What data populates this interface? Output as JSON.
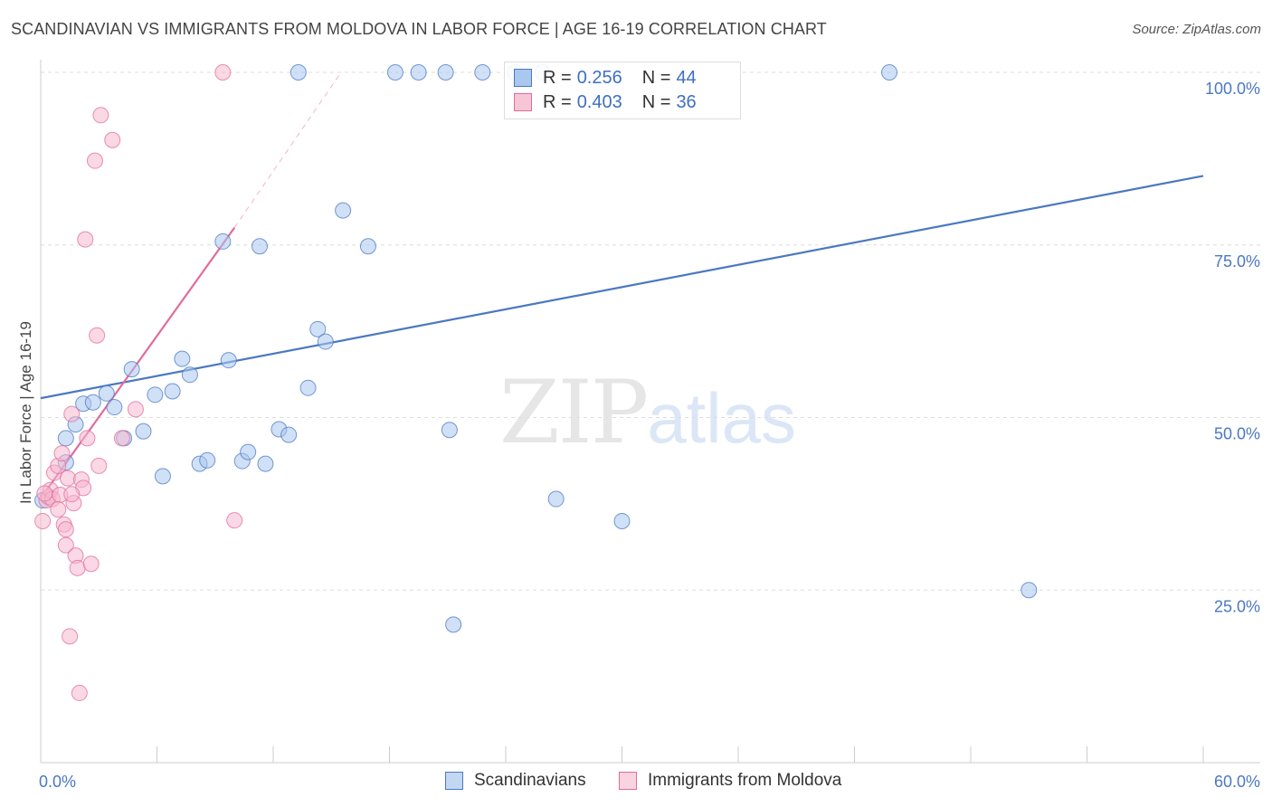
{
  "title": "SCANDINAVIAN VS IMMIGRANTS FROM MOLDOVA IN LABOR FORCE | AGE 16-19 CORRELATION CHART",
  "source": "Source: ZipAtlas.com",
  "watermark": {
    "zip": "ZIP",
    "atlas": "atlas"
  },
  "colors": {
    "blue": "#4a78c2",
    "blue_fill": "#aac7ef",
    "pink": "#e16c99",
    "pink_fill": "#f6b8cd",
    "grid": "#dddddd"
  },
  "legend_top": {
    "rows": [
      {
        "r_label": "R =",
        "r_value": "0.256",
        "n_label": "N =",
        "n_value": "44"
      },
      {
        "r_label": "R =",
        "r_value": "0.403",
        "n_label": "N =",
        "n_value": "36"
      }
    ]
  },
  "legend_bottom": [
    "Scandinavians",
    "Immigrants from Moldova"
  ],
  "chart_data": {
    "type": "scatter",
    "ylabel": "In Labor Force | Age 16-19",
    "xlim": [
      0,
      60
    ],
    "ylim": [
      0,
      100
    ],
    "x_tick_labels": [
      "0.0%",
      "60.0%"
    ],
    "y_ticks": [
      25,
      50,
      75,
      100
    ],
    "y_tick_labels": [
      "25.0%",
      "50.0%",
      "75.0%",
      "100.0%"
    ],
    "grid": true,
    "legend_position": "top",
    "series": [
      {
        "name": "Scandinavians",
        "color": "#4a78c2",
        "points": [
          [
            0.1,
            38
          ],
          [
            1.3,
            43.5
          ],
          [
            1.3,
            47
          ],
          [
            1.8,
            49
          ],
          [
            2.2,
            52
          ],
          [
            2.7,
            52.2
          ],
          [
            3.4,
            53.5
          ],
          [
            3.8,
            51.5
          ],
          [
            4.3,
            47
          ],
          [
            4.7,
            57
          ],
          [
            5.3,
            48
          ],
          [
            5.9,
            53.3
          ],
          [
            6.3,
            41.5
          ],
          [
            6.8,
            53.8
          ],
          [
            7.3,
            58.5
          ],
          [
            7.7,
            56.2
          ],
          [
            8.2,
            43.3
          ],
          [
            8.6,
            43.8
          ],
          [
            9.4,
            75.5
          ],
          [
            9.7,
            58.3
          ],
          [
            10.4,
            43.7
          ],
          [
            10.7,
            45
          ],
          [
            11.3,
            74.8
          ],
          [
            11.6,
            43.3
          ],
          [
            12.3,
            48.3
          ],
          [
            12.8,
            47.5
          ],
          [
            13.3,
            100
          ],
          [
            13.8,
            54.3
          ],
          [
            14.3,
            62.8
          ],
          [
            14.7,
            61
          ],
          [
            15.6,
            80
          ],
          [
            16.9,
            74.8
          ],
          [
            18.3,
            100
          ],
          [
            19.5,
            100
          ],
          [
            20.9,
            100
          ],
          [
            21.3,
            20
          ],
          [
            21.1,
            48.2
          ],
          [
            22.8,
            100
          ],
          [
            24.5,
            100
          ],
          [
            25.9,
            100
          ],
          [
            26.6,
            38.2
          ],
          [
            30.0,
            35
          ],
          [
            43.8,
            100
          ],
          [
            51.0,
            25
          ]
        ],
        "trend": {
          "x0": 0,
          "y0": 52.8,
          "x1": 60,
          "y1": 85
        }
      },
      {
        "name": "Immigrants from Moldova",
        "color": "#e16c99",
        "points": [
          [
            0.1,
            35
          ],
          [
            0.3,
            38
          ],
          [
            0.4,
            38.5
          ],
          [
            0.5,
            39.5
          ],
          [
            0.6,
            38.2
          ],
          [
            0.7,
            42
          ],
          [
            0.9,
            43
          ],
          [
            1.0,
            38.8
          ],
          [
            1.1,
            44.8
          ],
          [
            1.2,
            34.5
          ],
          [
            1.3,
            33.8
          ],
          [
            1.3,
            31.5
          ],
          [
            1.4,
            41.2
          ],
          [
            1.5,
            18.3
          ],
          [
            1.6,
            50.5
          ],
          [
            1.7,
            37.6
          ],
          [
            1.8,
            30
          ],
          [
            1.9,
            28.2
          ],
          [
            2.0,
            10.1
          ],
          [
            2.1,
            41
          ],
          [
            2.2,
            39.8
          ],
          [
            2.3,
            75.8
          ],
          [
            2.4,
            47
          ],
          [
            2.6,
            28.8
          ],
          [
            2.8,
            87.2
          ],
          [
            2.9,
            61.9
          ],
          [
            3.0,
            43
          ],
          [
            3.1,
            93.8
          ],
          [
            3.7,
            90.2
          ],
          [
            4.2,
            47
          ],
          [
            4.9,
            51.2
          ],
          [
            10.0,
            35.1
          ],
          [
            9.4,
            100
          ],
          [
            0.2,
            39
          ],
          [
            0.9,
            36.7
          ],
          [
            1.6,
            38.9
          ]
        ],
        "trend": {
          "x0": 0,
          "y0": 38.3,
          "x1": 10,
          "y1": 77.5
        },
        "trend_extension": {
          "x0": 10,
          "y0": 77.5,
          "x1": 15.5,
          "y1": 100
        }
      }
    ]
  }
}
